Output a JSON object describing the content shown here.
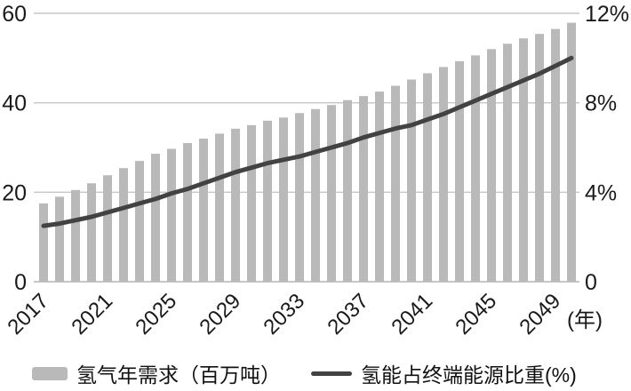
{
  "chart_data": {
    "type": "combo-bar-line",
    "x_years": [
      2017,
      2018,
      2019,
      2020,
      2021,
      2022,
      2023,
      2024,
      2025,
      2026,
      2027,
      2028,
      2029,
      2030,
      2031,
      2032,
      2033,
      2034,
      2035,
      2036,
      2037,
      2038,
      2039,
      2040,
      2041,
      2042,
      2043,
      2044,
      2045,
      2046,
      2047,
      2048,
      2049,
      2050
    ],
    "series": [
      {
        "name": "氢气年需求（百万吨）",
        "type": "bar",
        "axis": "left",
        "color": "#b9b9b9",
        "values": [
          17.5,
          19,
          20.5,
          22,
          23.8,
          25.4,
          27,
          28.6,
          29.7,
          31,
          32,
          33.1,
          34.2,
          35,
          36,
          36.7,
          37.7,
          38.6,
          39.5,
          40.6,
          41.5,
          42.5,
          43.8,
          45.2,
          46.6,
          48,
          49.3,
          50.6,
          52,
          53.2,
          54.4,
          55.4,
          56.5,
          57.9
        ]
      },
      {
        "name": "氢能占终端能源比重(%)",
        "type": "line",
        "axis": "right",
        "color": "#424242",
        "values": [
          2.5,
          2.6,
          2.75,
          2.9,
          3.1,
          3.3,
          3.5,
          3.7,
          3.95,
          4.15,
          4.4,
          4.65,
          4.9,
          5.1,
          5.3,
          5.45,
          5.6,
          5.8,
          6.0,
          6.2,
          6.45,
          6.65,
          6.85,
          7.0,
          7.25,
          7.5,
          7.8,
          8.1,
          8.4,
          8.7,
          9.0,
          9.3,
          9.65,
          10.0
        ]
      }
    ],
    "left_axis": {
      "range": [
        0,
        60
      ],
      "tick_values": [
        0,
        20,
        40,
        60
      ],
      "tick_labels": [
        "0",
        "20",
        "40",
        "60"
      ]
    },
    "right_axis": {
      "range": [
        0,
        12
      ],
      "tick_values": [
        0,
        4,
        8,
        12
      ],
      "tick_labels": [
        "0",
        "4%",
        "8%",
        "12%"
      ]
    },
    "x_axis": {
      "tick_years": [
        2017,
        2021,
        2025,
        2029,
        2033,
        2037,
        2041,
        2045,
        2049
      ],
      "unit_label": "(年)"
    },
    "grid": {
      "on": true,
      "color": "#c6c6c6"
    },
    "background": "#ffffff",
    "legend_position": "bottom"
  },
  "legend": {
    "items": [
      {
        "label": "氢气年需求（百万吨）",
        "swatch": "bar-swatch-icon"
      },
      {
        "label": "氢能占终端能源比重(%)",
        "swatch": "line-swatch-icon"
      }
    ]
  }
}
